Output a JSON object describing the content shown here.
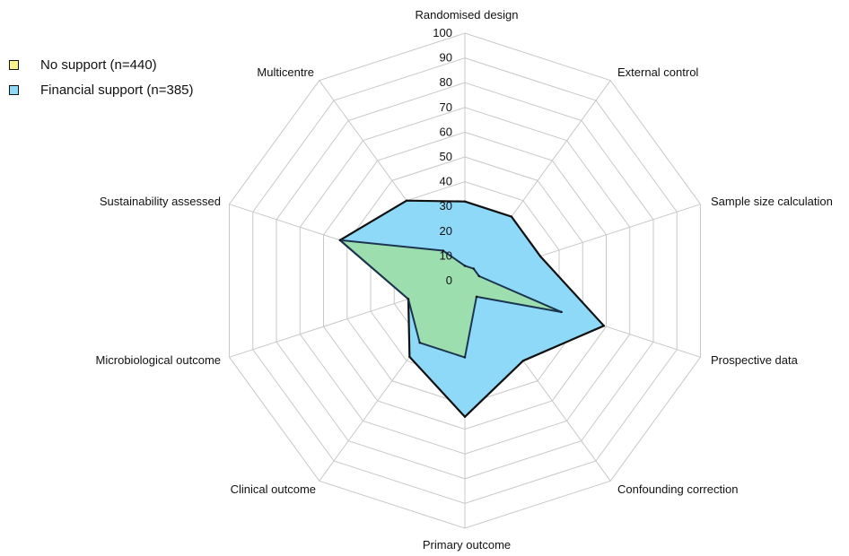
{
  "chart_data": {
    "type": "radar",
    "title": "",
    "categories": [
      "Randomised design",
      "External control",
      "Sample size calculation",
      "Prospective data",
      "Confounding correction",
      "Primary outcome",
      "Clinical outcome",
      "Microbiological outcome",
      "Sustainability assessed",
      "Multicentre"
    ],
    "rlim": [
      0,
      100
    ],
    "ticks": [
      "0",
      "10",
      "20",
      "30",
      "40",
      "50",
      "60",
      "70",
      "80",
      "90",
      "100"
    ],
    "legend_position": "top-left",
    "grid": true,
    "series": [
      {
        "name": "No support (n=440)",
        "color": "#fbf28a",
        "values": [
          6,
          6,
          6,
          41,
          8,
          31,
          31,
          24,
          53,
          15
        ]
      },
      {
        "name": "Financial support (n=385)",
        "color": "#8ed8f8",
        "values": [
          32,
          32,
          32,
          59,
          40,
          55,
          38,
          24,
          53,
          40
        ]
      }
    ],
    "overlap_color": "#9ddeae"
  }
}
